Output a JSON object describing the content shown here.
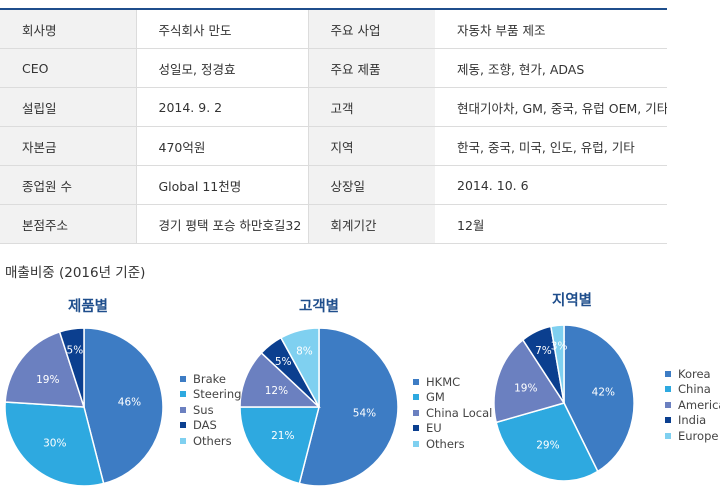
{
  "company_table": [
    {
      "label1": "회사명",
      "value1": "주식회사 만도",
      "label2": "주요 사업",
      "value2": "자동차 부품 제조"
    },
    {
      "label1": "CEO",
      "value1": "성일모, 정경효",
      "label2": "주요 제품",
      "value2": "제동, 조향, 현가, ADAS"
    },
    {
      "label1": "설립일",
      "value1": "2014. 9. 2",
      "label2": "고객",
      "value2": "현대기아차, GM, 중국, 유럽 OEM, 기타"
    },
    {
      "label1": "자본금",
      "value1": "470억원",
      "label2": "지역",
      "value2": "한국, 중국, 미국, 인도, 유럽, 기타"
    },
    {
      "label1": "종업원 수",
      "value1": "Global 11천명",
      "label2": "상장일",
      "value2": "2014. 10. 6"
    },
    {
      "label1": "본점주소",
      "value1": "경기 평택 포승 하만호길32",
      "label2": "회계기간",
      "value2": "12월"
    }
  ],
  "section_title": "매출비중 (2016년 기준)",
  "colors": [
    "#3d7cc4",
    "#2ea9e0",
    "#6b80c0",
    "#0b3f8f",
    "#7fd0f0"
  ],
  "chart_data": [
    {
      "type": "pie",
      "title": "제품별",
      "categories": [
        "Brake",
        "Steering",
        "Sus",
        "DAS",
        "Others"
      ],
      "values": [
        46,
        30,
        19,
        5,
        0
      ],
      "labels": [
        "46%",
        "30%",
        "19%",
        "5%",
        ""
      ]
    },
    {
      "type": "pie",
      "title": "고객별",
      "categories": [
        "HKMC",
        "GM",
        "China Local",
        "EU",
        "Others"
      ],
      "values": [
        54,
        21,
        12,
        5,
        8
      ],
      "labels": [
        "54%",
        "21%",
        "12%",
        "5%",
        "8%"
      ]
    },
    {
      "type": "pie",
      "title": "지역별",
      "categories": [
        "Korea",
        "China",
        "America",
        "India",
        "Europe"
      ],
      "values": [
        42,
        29,
        19,
        7,
        3
      ],
      "labels": [
        "42%",
        "29%",
        "19%",
        "7%",
        "3%"
      ]
    }
  ]
}
